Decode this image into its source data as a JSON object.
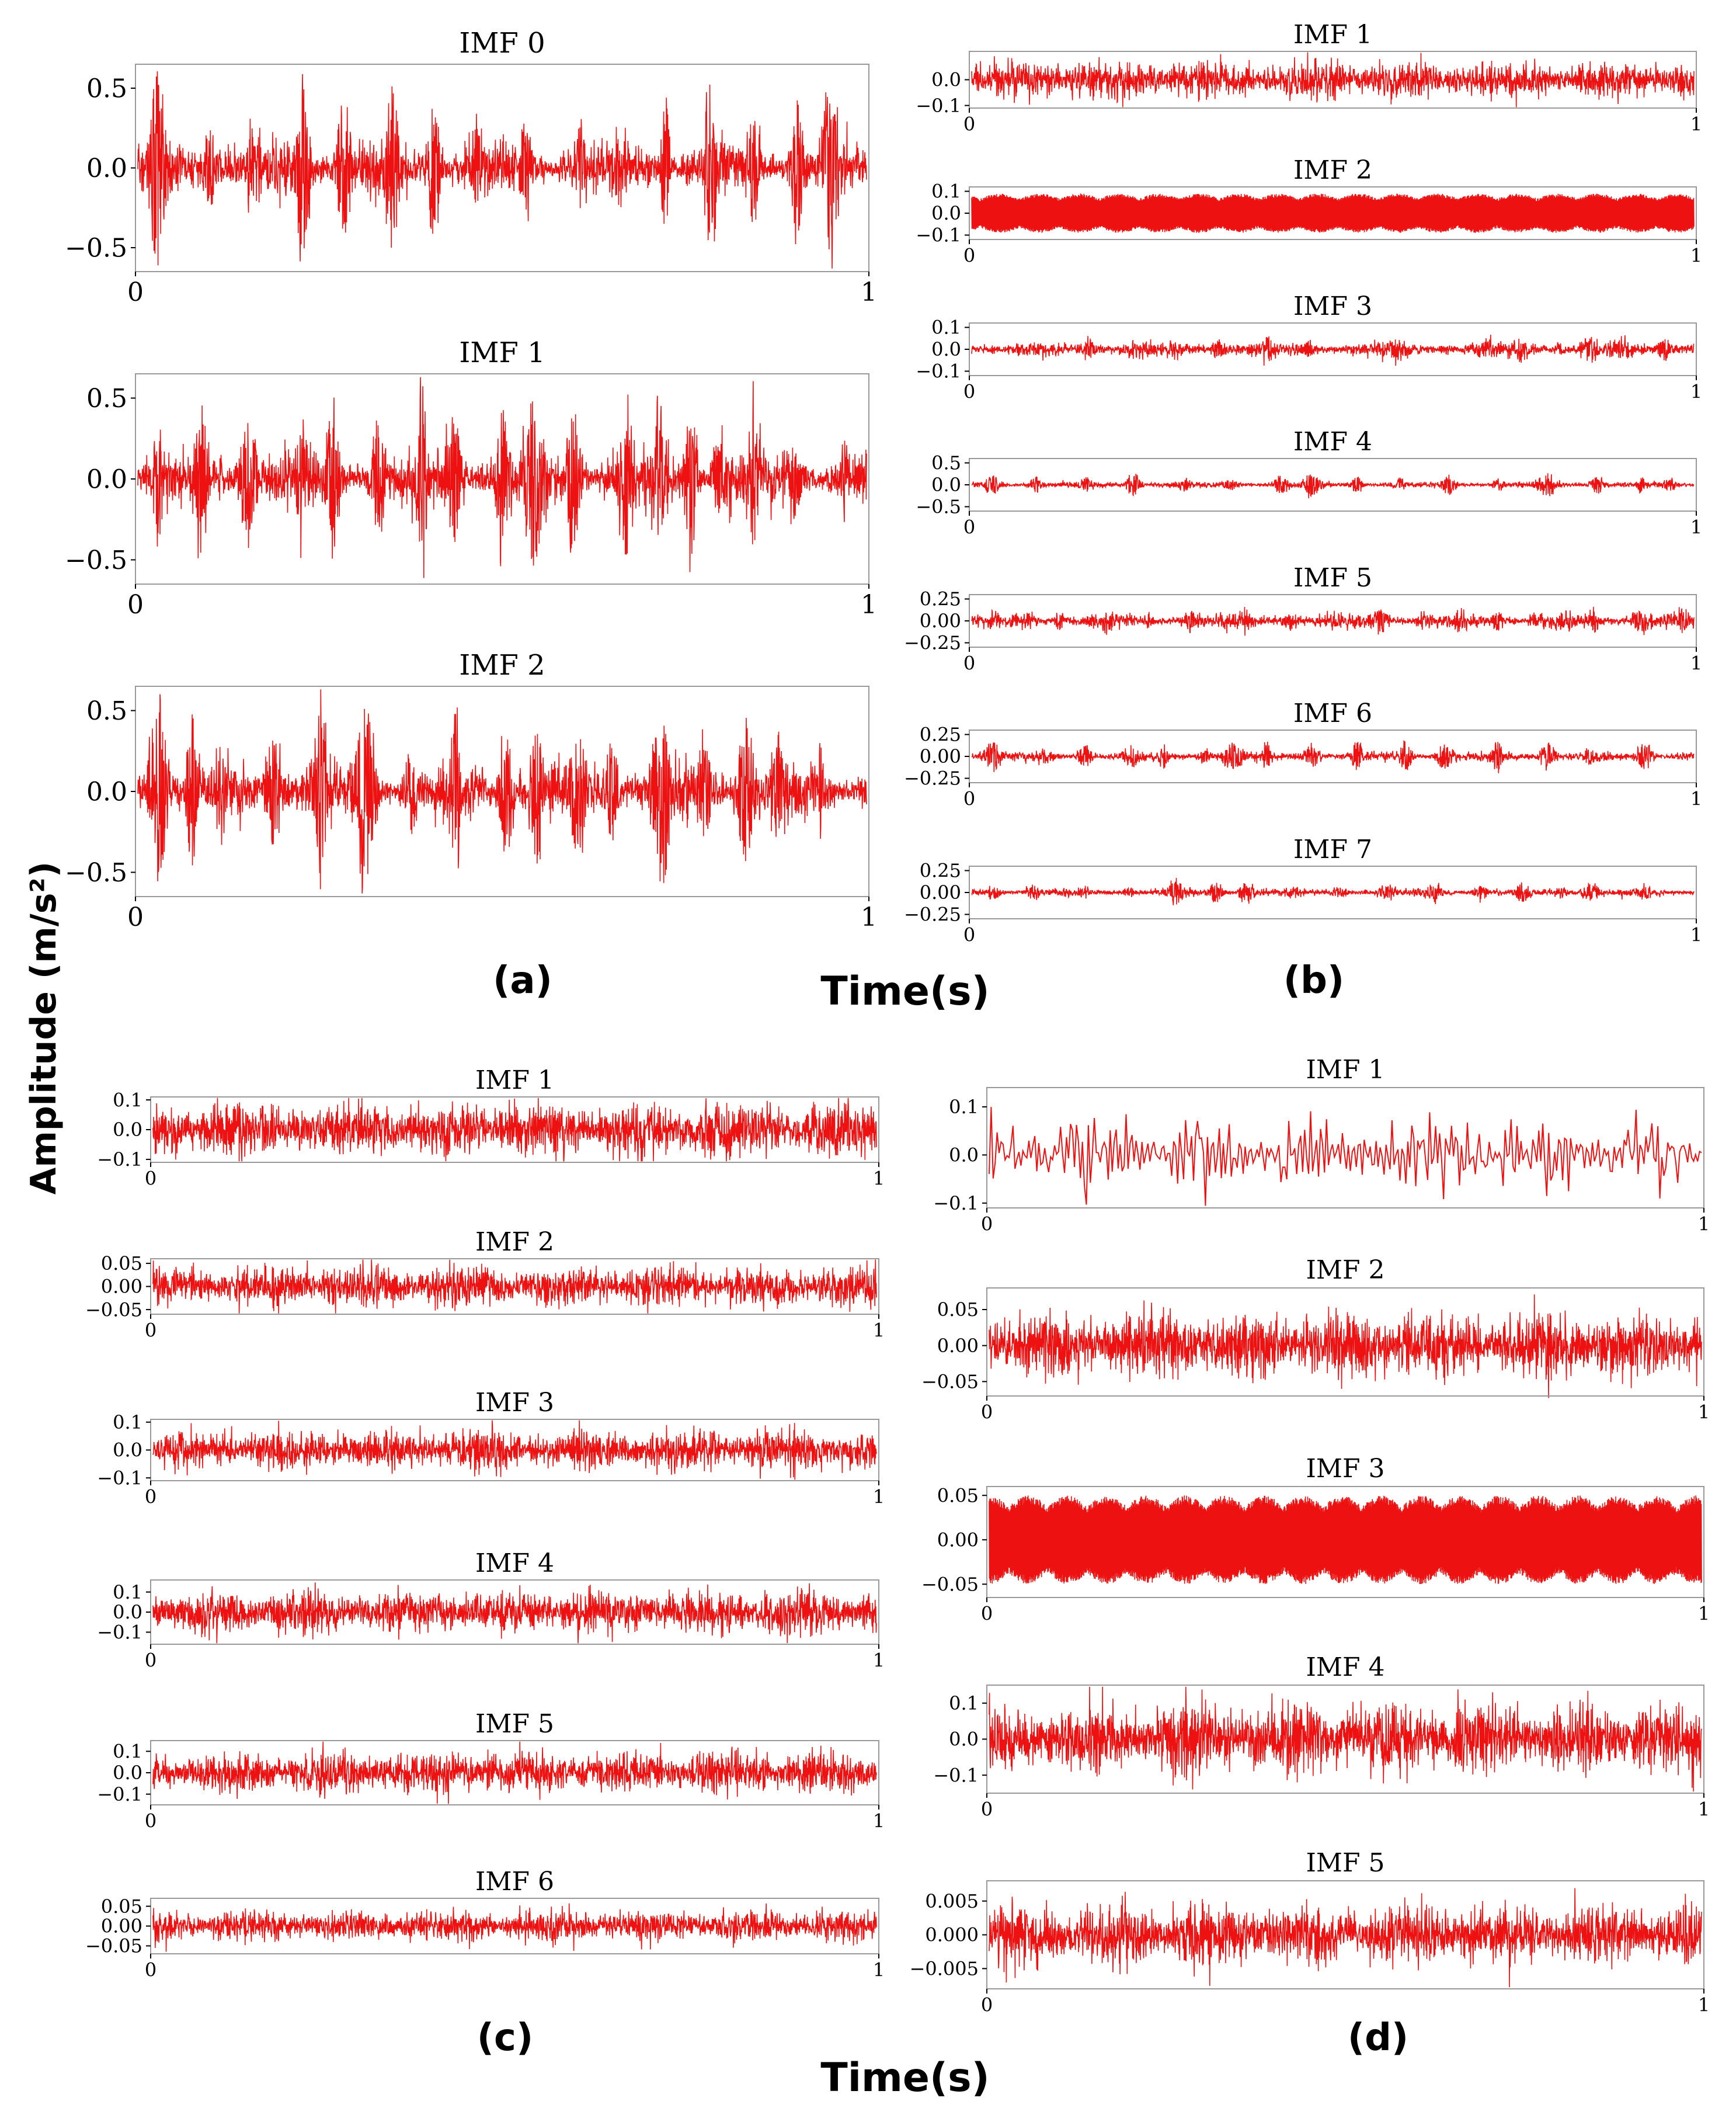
{
  "figure": {
    "y_label": "Amplitude (m/s²)",
    "x_label_top": "Time(s)",
    "x_label_bottom": "Time(s)",
    "signal_color": "#ee1111",
    "axis_color": "#999999"
  },
  "chart_data": [
    {
      "panel": "(a)",
      "type": "line",
      "subplots": [
        {
          "title": "IMF 0",
          "ylim": [
            -0.65,
            0.65
          ],
          "yticks": [
            "0.5",
            "0.0",
            "−0.5"
          ],
          "ytick_values": [
            0.5,
            0,
            -0.5
          ],
          "xlim": [
            0,
            1
          ],
          "xticks": [
            "0",
            "1"
          ],
          "amp": 0.1,
          "style": "burst",
          "burst": 0.6
        },
        {
          "title": "IMF 1",
          "ylim": [
            -0.65,
            0.65
          ],
          "yticks": [
            "0.5",
            "0.0",
            "−0.5"
          ],
          "ytick_values": [
            0.5,
            0,
            -0.5
          ],
          "xlim": [
            0,
            1
          ],
          "xticks": [
            "0",
            "1"
          ],
          "amp": 0.1,
          "style": "burst",
          "burst": 0.6
        },
        {
          "title": "IMF 2",
          "ylim": [
            -0.65,
            0.65
          ],
          "yticks": [
            "0.5",
            "0.0",
            "−0.5"
          ],
          "ytick_values": [
            0.5,
            0,
            -0.5
          ],
          "xlim": [
            0,
            1
          ],
          "xticks": [
            "0",
            "1"
          ],
          "amp": 0.1,
          "style": "burst",
          "burst": 0.6
        }
      ]
    },
    {
      "panel": "(b)",
      "type": "line",
      "subplots": [
        {
          "title": "IMF 1",
          "ylim": [
            -0.11,
            0.11
          ],
          "yticks": [
            "0.0",
            "−0.1"
          ],
          "ytick_values": [
            0,
            -0.1
          ],
          "xlim": [
            0,
            1
          ],
          "xticks": [
            "0",
            "1"
          ],
          "amp": 0.04,
          "style": "noise"
        },
        {
          "title": "IMF 2",
          "ylim": [
            -0.12,
            0.12
          ],
          "yticks": [
            "0.1",
            "0.0",
            "−0.1"
          ],
          "ytick_values": [
            0.1,
            0,
            -0.1
          ],
          "xlim": [
            0,
            1
          ],
          "xticks": [
            "0",
            "1"
          ],
          "amp": 0.09,
          "style": "dense"
        },
        {
          "title": "IMF 3",
          "ylim": [
            -0.12,
            0.12
          ],
          "yticks": [
            "0.1",
            "0.0",
            "−0.1"
          ],
          "ytick_values": [
            0.1,
            0,
            -0.1
          ],
          "xlim": [
            0,
            1
          ],
          "xticks": [
            "0",
            "1"
          ],
          "amp": 0.02,
          "style": "burst",
          "burst": 0.06
        },
        {
          "title": "IMF 4",
          "ylim": [
            -0.6,
            0.6
          ],
          "yticks": [
            "0.5",
            "0.0",
            "−0.5"
          ],
          "ytick_values": [
            0.5,
            0,
            -0.5
          ],
          "xlim": [
            0,
            1
          ],
          "xticks": [
            "0",
            "1"
          ],
          "amp": 0.04,
          "style": "burst",
          "burst": 0.3
        },
        {
          "title": "IMF 5",
          "ylim": [
            -0.3,
            0.3
          ],
          "yticks": [
            "0.25",
            "0.00",
            "−0.25"
          ],
          "ytick_values": [
            0.25,
            0,
            -0.25
          ],
          "xlim": [
            0,
            1
          ],
          "xticks": [
            "0",
            "1"
          ],
          "amp": 0.05,
          "style": "burst",
          "burst": 0.15
        },
        {
          "title": "IMF 6",
          "ylim": [
            -0.3,
            0.3
          ],
          "yticks": [
            "0.25",
            "0.00",
            "−0.25"
          ],
          "ytick_values": [
            0.25,
            0,
            -0.25
          ],
          "xlim": [
            0,
            1
          ],
          "xticks": [
            "0",
            "1"
          ],
          "amp": 0.03,
          "style": "burst",
          "burst": 0.2
        },
        {
          "title": "IMF 7",
          "ylim": [
            -0.3,
            0.3
          ],
          "yticks": [
            "0.25",
            "0.00",
            "−0.25"
          ],
          "ytick_values": [
            0.25,
            0,
            -0.25
          ],
          "xlim": [
            0,
            1
          ],
          "xticks": [
            "0",
            "1"
          ],
          "amp": 0.025,
          "style": "burst",
          "burst": 0.15
        }
      ]
    },
    {
      "panel": "(c)",
      "type": "line",
      "subplots": [
        {
          "title": "IMF 1",
          "ylim": [
            -0.11,
            0.11
          ],
          "yticks": [
            "0.1",
            "0.0",
            "−0.1"
          ],
          "ytick_values": [
            0.1,
            0,
            -0.1
          ],
          "xlim": [
            0,
            1
          ],
          "xticks": [
            "0",
            "1"
          ],
          "amp": 0.05,
          "style": "noise"
        },
        {
          "title": "IMF 2",
          "ylim": [
            -0.06,
            0.06
          ],
          "yticks": [
            "0.05",
            "0.00",
            "−0.05"
          ],
          "ytick_values": [
            0.05,
            0,
            -0.05
          ],
          "xlim": [
            0,
            1
          ],
          "xticks": [
            "0",
            "1"
          ],
          "amp": 0.025,
          "style": "noise"
        },
        {
          "title": "IMF 3",
          "ylim": [
            -0.11,
            0.11
          ],
          "yticks": [
            "0.1",
            "0.0",
            "−0.1"
          ],
          "ytick_values": [
            0.1,
            0,
            -0.1
          ],
          "xlim": [
            0,
            1
          ],
          "xticks": [
            "0",
            "1"
          ],
          "amp": 0.04,
          "style": "noise"
        },
        {
          "title": "IMF 4",
          "ylim": [
            -0.16,
            0.16
          ],
          "yticks": [
            "0.1",
            "0.0",
            "−0.1"
          ],
          "ytick_values": [
            0.1,
            0,
            -0.1
          ],
          "xlim": [
            0,
            1
          ],
          "xticks": [
            "0",
            "1"
          ],
          "amp": 0.06,
          "style": "noise"
        },
        {
          "title": "IMF 5",
          "ylim": [
            -0.15,
            0.15
          ],
          "yticks": [
            "0.1",
            "0.0",
            "−0.1"
          ],
          "ytick_values": [
            0.1,
            0,
            -0.1
          ],
          "xlim": [
            0,
            1
          ],
          "xticks": [
            "0",
            "1"
          ],
          "amp": 0.055,
          "style": "noise"
        },
        {
          "title": "IMF 6",
          "ylim": [
            -0.07,
            0.07
          ],
          "yticks": [
            "0.05",
            "0.00",
            "−0.05"
          ],
          "ytick_values": [
            0.05,
            0,
            -0.05
          ],
          "xlim": [
            0,
            1
          ],
          "xticks": [
            "0",
            "1"
          ],
          "amp": 0.022,
          "style": "noise"
        }
      ]
    },
    {
      "panel": "(d)",
      "type": "line",
      "subplots": [
        {
          "title": "IMF 1",
          "ylim": [
            -0.11,
            0.14
          ],
          "yticks": [
            "0.1",
            "0.0",
            "−0.1"
          ],
          "ytick_values": [
            0.1,
            0,
            -0.1
          ],
          "xlim": [
            0,
            1
          ],
          "xticks": [
            "0",
            "1"
          ],
          "amp": 0.06,
          "style": "sparse"
        },
        {
          "title": "IMF 2",
          "ylim": [
            -0.07,
            0.08
          ],
          "yticks": [
            "0.05",
            "0.00",
            "−0.05"
          ],
          "ytick_values": [
            0.05,
            0,
            -0.05
          ],
          "xlim": [
            0,
            1
          ],
          "xticks": [
            "0",
            "1"
          ],
          "amp": 0.025,
          "style": "noise"
        },
        {
          "title": "IMF 3",
          "ylim": [
            -0.065,
            0.06
          ],
          "yticks": [
            "0.05",
            "0.00",
            "−0.05"
          ],
          "ytick_values": [
            0.05,
            0,
            -0.05
          ],
          "xlim": [
            0,
            1
          ],
          "xticks": [
            "0",
            "1"
          ],
          "amp": 0.05,
          "style": "dense"
        },
        {
          "title": "IMF 4",
          "ylim": [
            -0.15,
            0.15
          ],
          "yticks": [
            "0.1",
            "0.0",
            "−0.1"
          ],
          "ytick_values": [
            0.1,
            0,
            -0.1
          ],
          "xlim": [
            0,
            1
          ],
          "xticks": [
            "0",
            "1"
          ],
          "amp": 0.055,
          "style": "noise"
        },
        {
          "title": "IMF 5",
          "ylim": [
            -0.008,
            0.008
          ],
          "yticks": [
            "0.005",
            "0.000",
            "−0.005"
          ],
          "ytick_values": [
            0.005,
            0,
            -0.005
          ],
          "xlim": [
            0,
            1
          ],
          "xticks": [
            "0",
            "1"
          ],
          "amp": 0.0025,
          "style": "noise"
        }
      ]
    }
  ]
}
